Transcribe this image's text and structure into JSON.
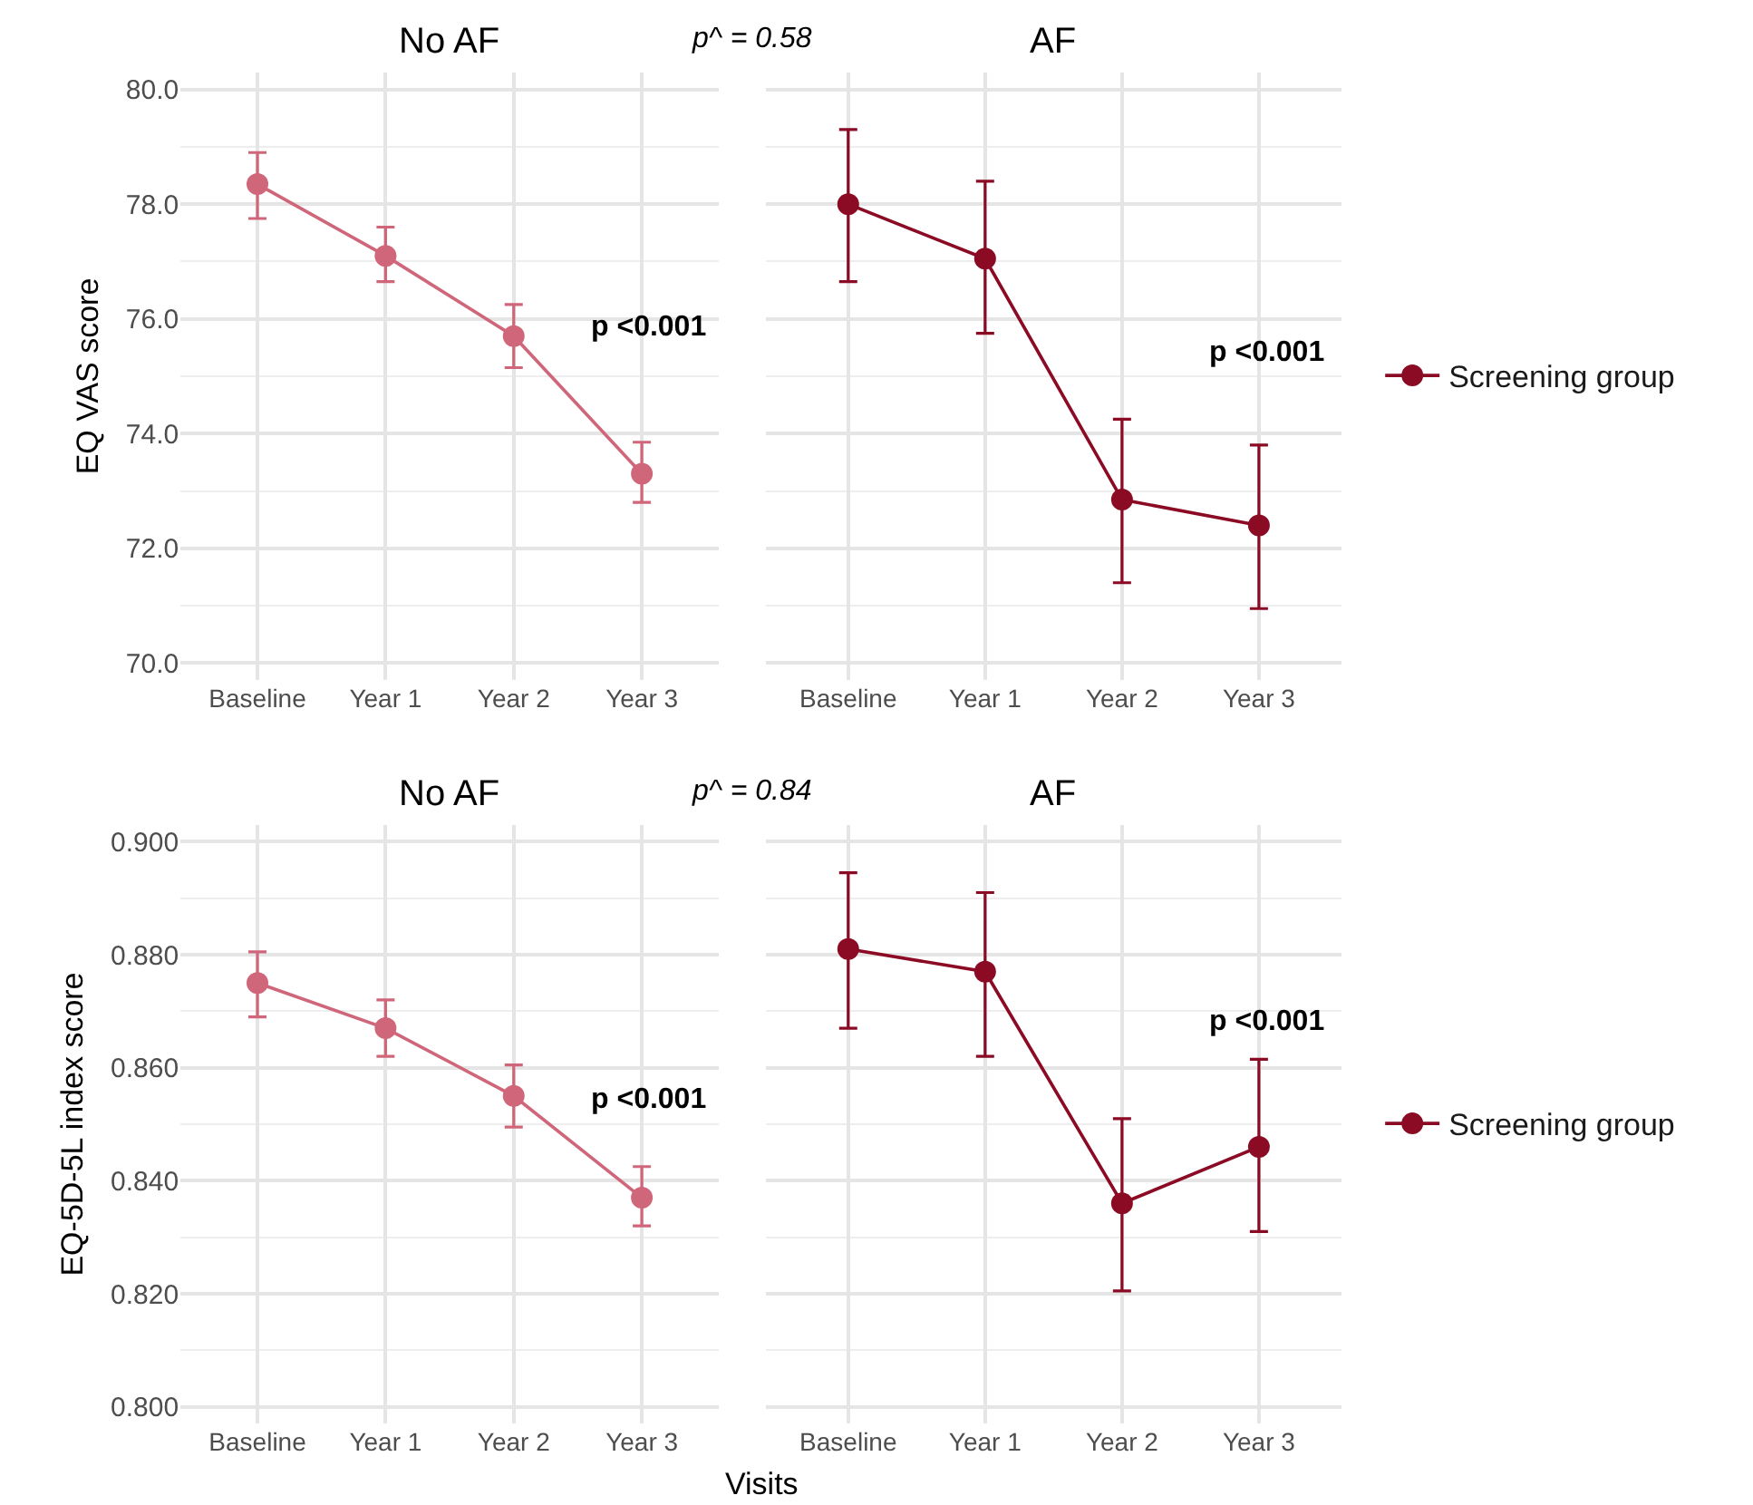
{
  "chart_data": [
    {
      "type": "line",
      "title": "No AF",
      "ylabel": "EQ VAS score",
      "categories": [
        "Baseline",
        "Year 1",
        "Year 2",
        "Year 3"
      ],
      "marker": "circle",
      "grid": true,
      "ylim": [
        69.7,
        80.3
      ],
      "yticks": [
        {
          "value": 70,
          "label": "70.0"
        },
        {
          "value": 72,
          "label": "72.0"
        },
        {
          "value": 74,
          "label": "74.0"
        },
        {
          "value": 76,
          "label": "76.0"
        },
        {
          "value": 78,
          "label": "78.0"
        },
        {
          "value": 80,
          "label": "80.0"
        }
      ],
      "series": [
        {
          "color": "#d0667a",
          "values": [
            78.35,
            77.1,
            75.7,
            73.3
          ],
          "errors": [
            [
              77.75,
              78.9
            ],
            [
              76.65,
              77.6
            ],
            [
              75.15,
              76.25
            ],
            [
              72.8,
              73.85
            ]
          ]
        }
      ],
      "subtitle": "p^ = 0.58",
      "annotations": [
        "p <0.001"
      ]
    },
    {
      "type": "line",
      "title": "AF",
      "categories": [
        "Baseline",
        "Year 1",
        "Year 2",
        "Year 3"
      ],
      "marker": "circle",
      "grid": true,
      "legend": "right",
      "tick_labels": "x",
      "ylim": [
        69.7,
        80.3
      ],
      "yticks": [
        70,
        72,
        74,
        76,
        78,
        80
      ],
      "series": [
        {
          "name": "Screening group",
          "color": "#8b0a24",
          "values": [
            78.0,
            77.05,
            72.85,
            72.4
          ],
          "errors": [
            [
              76.65,
              79.3
            ],
            [
              75.75,
              78.4
            ],
            [
              71.4,
              74.25
            ],
            [
              70.95,
              73.8
            ]
          ]
        }
      ],
      "annotations": [
        "p <0.001"
      ]
    },
    {
      "type": "line",
      "title": "No AF",
      "ylabel": "EQ-5D-5L index score",
      "xlabel": "Visits",
      "categories": [
        "Baseline",
        "Year 1",
        "Year 2",
        "Year 3"
      ],
      "marker": "circle",
      "grid": true,
      "ylim": [
        0.797,
        0.903
      ],
      "yticks": [
        {
          "value": 0.8,
          "label": "0.800"
        },
        {
          "value": 0.82,
          "label": "0.820"
        },
        {
          "value": 0.84,
          "label": "0.840"
        },
        {
          "value": 0.86,
          "label": "0.860"
        },
        {
          "value": 0.88,
          "label": "0.880"
        },
        {
          "value": 0.9,
          "label": "0.900"
        }
      ],
      "series": [
        {
          "color": "#d0667a",
          "values": [
            0.875,
            0.867,
            0.855,
            0.837
          ],
          "errors": [
            [
              0.869,
              0.8805
            ],
            [
              0.862,
              0.872
            ],
            [
              0.8495,
              0.8605
            ],
            [
              0.832,
              0.8425
            ]
          ]
        }
      ],
      "subtitle": "p^ = 0.84",
      "annotations": [
        "p <0.001"
      ]
    },
    {
      "type": "line",
      "title": "AF",
      "categories": [
        "Baseline",
        "Year 1",
        "Year 2",
        "Year 3"
      ],
      "marker": "circle",
      "grid": true,
      "legend": "right",
      "tick_labels": "x",
      "ylim": [
        0.797,
        0.903
      ],
      "yticks": [
        0.8,
        0.82,
        0.84,
        0.86,
        0.88,
        0.9
      ],
      "series": [
        {
          "name": "Screening group",
          "color": "#8b0a24",
          "values": [
            0.881,
            0.877,
            0.836,
            0.846
          ],
          "errors": [
            [
              0.867,
              0.8945
            ],
            [
              0.862,
              0.891
            ],
            [
              0.8205,
              0.851
            ],
            [
              0.831,
              0.8615
            ]
          ]
        }
      ],
      "annotations": [
        "p <0.001"
      ]
    }
  ]
}
